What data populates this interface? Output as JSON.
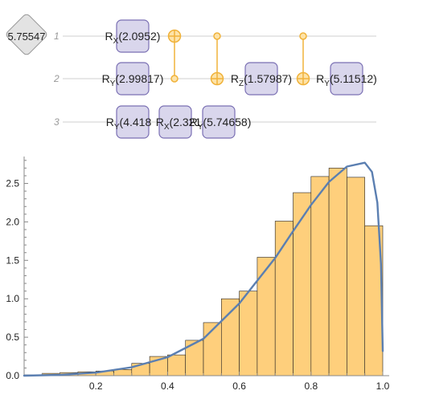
{
  "circuit": {
    "phase": "5.75547",
    "wires": [
      "1",
      "2",
      "3"
    ],
    "gates": [
      {
        "id": "rx-w1",
        "prefix": "R",
        "sub": "X",
        "value": "(2.0952)"
      },
      {
        "id": "ry-w2",
        "prefix": "R",
        "sub": "Y",
        "value": "(2.99817)"
      },
      {
        "id": "rz-w2",
        "prefix": "R",
        "sub": "Z",
        "value": "(1.57987)"
      },
      {
        "id": "ry-w2b",
        "prefix": "R",
        "sub": "Y",
        "value": "(5.11512)"
      },
      {
        "id": "ry-w3",
        "prefix": "R",
        "sub": "Y",
        "value": "(4.418"
      },
      {
        "id": "rx-w3",
        "prefix": "R",
        "sub": "X",
        "value": "(2.321"
      },
      {
        "id": "ry-w3b",
        "prefix": "R",
        "sub": "Y",
        "value": "(5.74658)"
      }
    ]
  },
  "colors": {
    "gate_fill": "#d9d6ec",
    "gate_stroke": "#7a6fb3",
    "control": "#f0b23a",
    "bar_fill": "#fecf7c",
    "curve": "#5b7fb1"
  },
  "chart_data": {
    "type": "bar",
    "overlay": "line",
    "title": "",
    "xlabel": "",
    "ylabel": "",
    "xlim": [
      0.0,
      1.0
    ],
    "ylim": [
      0.0,
      2.85
    ],
    "xticks": [
      "0.2",
      "0.4",
      "0.6",
      "0.8",
      "1.0"
    ],
    "yticks": [
      "0.0",
      "0.5",
      "1.0",
      "1.5",
      "2.0",
      "2.5"
    ],
    "bins": [
      [
        0.0,
        0.05,
        0.01
      ],
      [
        0.05,
        0.1,
        0.03
      ],
      [
        0.1,
        0.15,
        0.04
      ],
      [
        0.15,
        0.2,
        0.05
      ],
      [
        0.2,
        0.25,
        0.06
      ],
      [
        0.25,
        0.3,
        0.08
      ],
      [
        0.3,
        0.35,
        0.16
      ],
      [
        0.35,
        0.4,
        0.25
      ],
      [
        0.4,
        0.45,
        0.27
      ],
      [
        0.45,
        0.5,
        0.46
      ],
      [
        0.5,
        0.55,
        0.69
      ],
      [
        0.55,
        0.6,
        1.0
      ],
      [
        0.6,
        0.65,
        1.1
      ],
      [
        0.65,
        0.7,
        1.54
      ],
      [
        0.7,
        0.75,
        2.01
      ],
      [
        0.75,
        0.8,
        2.38
      ],
      [
        0.8,
        0.85,
        2.59
      ],
      [
        0.85,
        0.9,
        2.7
      ],
      [
        0.9,
        0.95,
        2.58
      ],
      [
        0.95,
        1.0,
        1.95
      ]
    ],
    "curve": [
      [
        0.0,
        0.0
      ],
      [
        0.1,
        0.01
      ],
      [
        0.2,
        0.04
      ],
      [
        0.3,
        0.11
      ],
      [
        0.4,
        0.24
      ],
      [
        0.5,
        0.48
      ],
      [
        0.6,
        0.94
      ],
      [
        0.7,
        1.53
      ],
      [
        0.75,
        1.88
      ],
      [
        0.8,
        2.22
      ],
      [
        0.85,
        2.52
      ],
      [
        0.9,
        2.72
      ],
      [
        0.95,
        2.77
      ],
      [
        0.97,
        2.65
      ],
      [
        0.985,
        2.25
      ],
      [
        0.995,
        1.45
      ],
      [
        1.0,
        0.32
      ]
    ]
  }
}
